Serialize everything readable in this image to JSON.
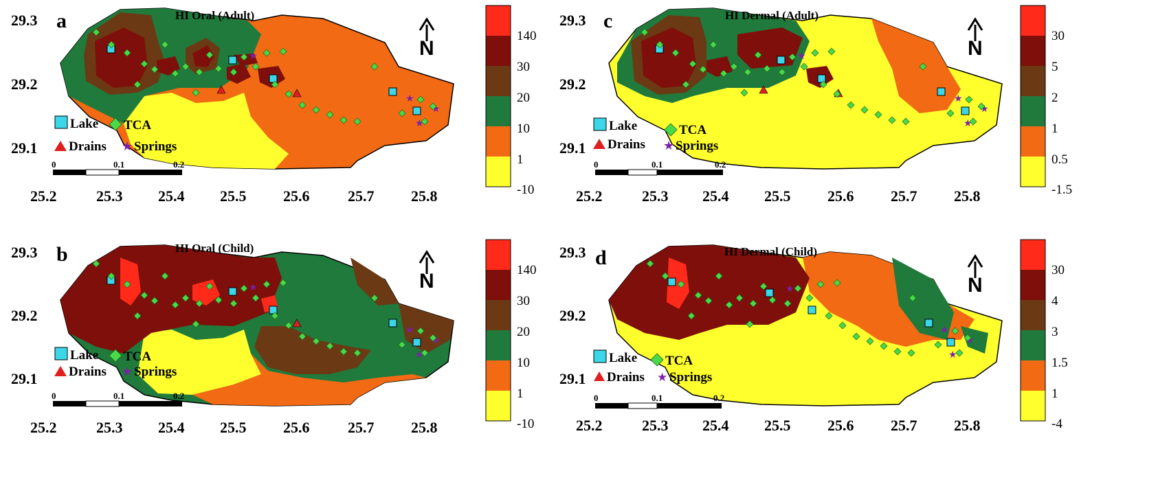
{
  "panels": [
    {
      "letter": "a",
      "title": "HI Oral (Adult)",
      "colorbar_labels": [
        "140",
        "30",
        "20",
        "10",
        "1",
        "-10"
      ],
      "x_ticks": [
        "25.2",
        "25.3",
        "25.4",
        "25.5",
        "25.6",
        "25.7",
        "25.8"
      ],
      "y_ticks": [
        "29.3",
        "29.2",
        "29.1"
      ],
      "legend": {
        "lake": "Lake",
        "tca": "TCA",
        "drains": "Drains",
        "springs": "Springs"
      },
      "scale_labels": [
        "0",
        "0.1",
        "0.2"
      ],
      "north": "N"
    },
    {
      "letter": "b",
      "title": "HI Oral (Child)",
      "colorbar_labels": [
        "140",
        "30",
        "20",
        "10",
        "1",
        "-10"
      ],
      "x_ticks": [
        "25.2",
        "25.3",
        "25.4",
        "25.5",
        "25.6",
        "25.7",
        "25.8"
      ],
      "y_ticks": [
        "29.3",
        "29.2",
        "29.1"
      ],
      "legend": {
        "lake": "Lake",
        "tca": "TCA",
        "drains": "Drains",
        "springs": "Springs"
      },
      "scale_labels": [
        "0",
        "0.1",
        "0.2"
      ],
      "north": "N"
    },
    {
      "letter": "c",
      "title": "HI Dermal (Adult)",
      "colorbar_labels": [
        "30",
        "5",
        "2",
        "1",
        "0.5",
        "-1.5"
      ],
      "x_ticks": [
        "25.2",
        "25.3",
        "25.4",
        "25.5",
        "25.6",
        "25.7",
        "25.8"
      ],
      "y_ticks": [
        "29.3",
        "29.2",
        "29.1"
      ],
      "legend": {
        "lake": "Lake",
        "tca": "TCA",
        "drains": "Drains",
        "springs": "Springs"
      },
      "scale_labels": [
        "0",
        "0.1",
        "0.2"
      ],
      "north": "N"
    },
    {
      "letter": "d",
      "title": "HI Dermal (Child)",
      "colorbar_labels": [
        "30",
        "4",
        "3",
        "1.5",
        "1",
        "-4"
      ],
      "x_ticks": [
        "25.2",
        "25.3",
        "25.4",
        "25.5",
        "25.6",
        "25.7",
        "25.8"
      ],
      "y_ticks": [
        "29.3",
        "29.2",
        "29.1"
      ],
      "legend": {
        "lake": "Lake",
        "tca": "TCA",
        "drains": "Drains",
        "springs": "Springs"
      },
      "scale_labels": [
        "0",
        "0.1",
        "0.2"
      ],
      "north": "N"
    }
  ],
  "colors": {
    "classes": [
      "#ff2a1a",
      "#7f0f0a",
      "#6b3a14",
      "#1f7a3c",
      "#f26a14",
      "#ffff2e"
    ],
    "lake": "#3ad7e8",
    "tca": "#49d949",
    "drains": "#e11e1e",
    "springs": "#7b21a8"
  }
}
